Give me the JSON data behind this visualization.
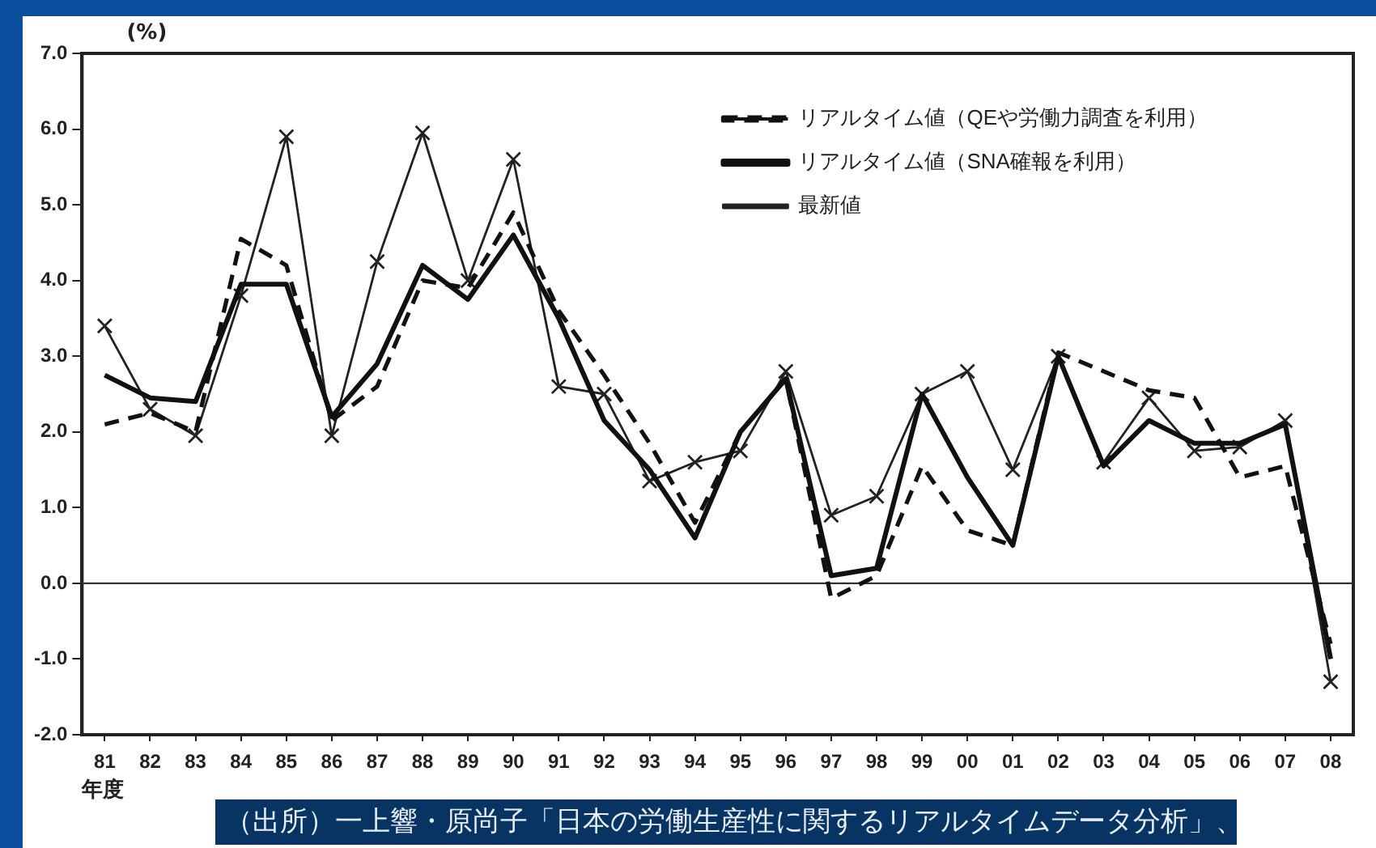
{
  "chart_data": {
    "type": "line",
    "ylabel": "(%)",
    "xlabel": "年度",
    "categories": [
      "81",
      "82",
      "83",
      "84",
      "85",
      "86",
      "87",
      "88",
      "89",
      "90",
      "91",
      "92",
      "93",
      "94",
      "95",
      "96",
      "97",
      "98",
      "99",
      "00",
      "01",
      "02",
      "03",
      "04",
      "05",
      "06",
      "07",
      "08"
    ],
    "series": [
      {
        "name": "リアルタイム値（QEや労働力調査を利用）",
        "color": "#111111",
        "line_style": "dashed",
        "marker": "none",
        "values": [
          2.1,
          2.25,
          2.0,
          4.55,
          4.2,
          2.15,
          2.6,
          4.0,
          3.9,
          4.9,
          3.6,
          2.75,
          1.85,
          0.8,
          2.0,
          2.7,
          -0.2,
          0.1,
          1.55,
          0.7,
          0.5,
          3.05,
          2.8,
          2.55,
          2.45,
          1.4,
          1.55,
          -0.8
        ]
      },
      {
        "name": "リアルタイム値（SNA確報を利用）",
        "color": "#111111",
        "line_style": "solid",
        "marker": "none",
        "values": [
          2.75,
          2.45,
          2.4,
          3.95,
          3.95,
          2.2,
          2.9,
          4.2,
          3.75,
          4.6,
          3.5,
          2.15,
          1.5,
          0.6,
          2.0,
          2.7,
          0.1,
          0.2,
          2.5,
          1.4,
          0.5,
          3.0,
          1.55,
          2.15,
          1.85,
          1.85,
          2.1,
          -1.0
        ]
      },
      {
        "name": "最新値",
        "color": "#222222",
        "line_style": "solid",
        "marker": "cross",
        "values": [
          3.4,
          2.3,
          1.95,
          3.8,
          5.9,
          1.95,
          4.25,
          5.95,
          4.0,
          5.6,
          2.6,
          2.5,
          1.35,
          1.6,
          1.75,
          2.8,
          0.9,
          1.15,
          2.5,
          2.8,
          1.5,
          3.0,
          1.6,
          2.45,
          1.75,
          1.8,
          2.15,
          -1.3
        ]
      }
    ],
    "ylim": [
      -2,
      7
    ],
    "yticks": [
      {
        "value": 7,
        "label": "7.0"
      },
      {
        "value": 6,
        "label": "6.0"
      },
      {
        "value": 5,
        "label": "5.0"
      },
      {
        "value": 4,
        "label": "4.0"
      },
      {
        "value": 3,
        "label": "3.0"
      },
      {
        "value": 2,
        "label": "2.0"
      },
      {
        "value": 1,
        "label": "1.0"
      },
      {
        "value": 0,
        "label": "0.0"
      },
      {
        "value": -1,
        "label": "-1.0"
      },
      {
        "value": -2,
        "label": "-2.0"
      }
    ],
    "grid": false,
    "legend": "top right",
    "ref_lines": [
      {
        "axis": "y",
        "value": 0,
        "color": "#333333"
      }
    ],
    "annotations": [
      "（出所）一上響・原尚子「日本の労働生産性に関するリアルタイムデータ分析」、"
    ]
  }
}
